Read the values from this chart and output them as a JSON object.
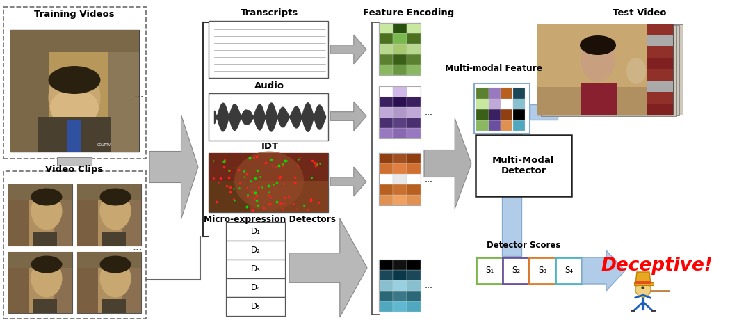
{
  "bg_color": "#ffffff",
  "training_videos_label": "Training Videos",
  "video_clips_label": "Video Clips",
  "transcripts_label": "Transcripts",
  "audio_label": "Audio",
  "idt_label": "IDT",
  "micro_label": "Micro-expression Detectors",
  "feature_encoding_label": "Feature Encoding",
  "multimodal_feature_label": "Multi-modal Feature",
  "detector_label": "Multi-Modal\nDetector",
  "detector_scores_label": "Detector Scores",
  "test_video_label": "Test Video",
  "deceptive_label": "Deceptive!",
  "d_labels": [
    "D₁",
    "D₂",
    "D₃",
    "D₄",
    "D₅"
  ],
  "s_labels": [
    "S₁",
    "S₂",
    "S₃",
    "S₄"
  ],
  "s_colors": [
    "#7ab648",
    "#6b4fa0",
    "#e07c2a",
    "#4ab5c4"
  ],
  "green_cols": [
    "#8ab86a",
    "#5a8030",
    "#c8d8a0",
    "#3a6020"
  ],
  "purple_cols": [
    "#9878c0",
    "#4a3070",
    "#c0a8d8",
    "#3a2060",
    "#ffffff"
  ],
  "orange_cols": [
    "#e09050",
    "#b86020",
    "#ffffff",
    "#d07030",
    "#904010"
  ],
  "teal_cols": [
    "#50a8c0",
    "#2a6878",
    "#88c0d0",
    "#1a4858",
    "#000000"
  ],
  "arrow_gray": "#a0a0a0",
  "blue_channel": "#a8c8e8"
}
